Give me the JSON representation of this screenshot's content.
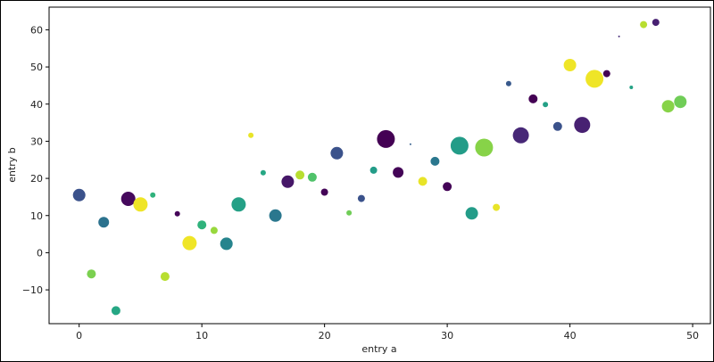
{
  "chart_data": {
    "type": "scatter",
    "title": "",
    "xlabel": "entry a",
    "ylabel": "entry b",
    "xlim": [
      -2.45,
      51.45
    ],
    "ylim": [
      -19.1,
      66.1
    ],
    "xticks": [
      0,
      10,
      20,
      30,
      40,
      50
    ],
    "yticks": [
      -10,
      0,
      10,
      20,
      30,
      40,
      50,
      60
    ],
    "grid": false,
    "colormap": "viridis",
    "color_encoding": "color value 0-1 on viridis colormap",
    "size_encoding": "marker radius",
    "points": [
      {
        "x": 0,
        "y": 15.5,
        "c": 0.25,
        "r": 7
      },
      {
        "x": 1,
        "y": -5.7,
        "c": 0.8,
        "r": 5
      },
      {
        "x": 2,
        "y": 8.2,
        "c": 0.38,
        "r": 6
      },
      {
        "x": 3,
        "y": -15.6,
        "c": 0.6,
        "r": 5
      },
      {
        "x": 4,
        "y": 14.5,
        "c": 0.03,
        "r": 8
      },
      {
        "x": 5,
        "y": 13.0,
        "c": 0.98,
        "r": 8
      },
      {
        "x": 6,
        "y": 15.5,
        "c": 0.65,
        "r": 3
      },
      {
        "x": 7,
        "y": -6.4,
        "c": 0.9,
        "r": 5
      },
      {
        "x": 8,
        "y": 10.5,
        "c": 0.02,
        "r": 3
      },
      {
        "x": 9,
        "y": 2.6,
        "c": 0.98,
        "r": 8
      },
      {
        "x": 10,
        "y": 7.5,
        "c": 0.65,
        "r": 5
      },
      {
        "x": 11,
        "y": 6.0,
        "c": 0.85,
        "r": 4
      },
      {
        "x": 12,
        "y": 2.4,
        "c": 0.45,
        "r": 7
      },
      {
        "x": 13,
        "y": 13.0,
        "c": 0.57,
        "r": 8
      },
      {
        "x": 14,
        "y": 31.6,
        "c": 0.97,
        "r": 3
      },
      {
        "x": 15,
        "y": 21.5,
        "c": 0.6,
        "r": 3
      },
      {
        "x": 16,
        "y": 10.0,
        "c": 0.4,
        "r": 7
      },
      {
        "x": 17,
        "y": 19.1,
        "c": 0.08,
        "r": 7
      },
      {
        "x": 18,
        "y": 20.9,
        "c": 0.9,
        "r": 5
      },
      {
        "x": 19,
        "y": 20.3,
        "c": 0.72,
        "r": 5
      },
      {
        "x": 20,
        "y": 16.3,
        "c": 0.01,
        "r": 4
      },
      {
        "x": 21,
        "y": 26.8,
        "c": 0.25,
        "r": 7
      },
      {
        "x": 22,
        "y": 10.7,
        "c": 0.78,
        "r": 3
      },
      {
        "x": 23,
        "y": 14.6,
        "c": 0.25,
        "r": 4
      },
      {
        "x": 24,
        "y": 22.2,
        "c": 0.55,
        "r": 4
      },
      {
        "x": 25,
        "y": 30.6,
        "c": 0.0,
        "r": 10
      },
      {
        "x": 26,
        "y": 21.6,
        "c": 0.01,
        "r": 6
      },
      {
        "x": 27,
        "y": 29.2,
        "c": 0.3,
        "r": 1
      },
      {
        "x": 28,
        "y": 19.2,
        "c": 0.97,
        "r": 5
      },
      {
        "x": 29,
        "y": 24.6,
        "c": 0.4,
        "r": 5
      },
      {
        "x": 30,
        "y": 17.8,
        "c": 0.01,
        "r": 5
      },
      {
        "x": 31,
        "y": 28.8,
        "c": 0.55,
        "r": 10
      },
      {
        "x": 32,
        "y": 10.6,
        "c": 0.55,
        "r": 7
      },
      {
        "x": 33,
        "y": 28.3,
        "c": 0.82,
        "r": 10
      },
      {
        "x": 34,
        "y": 12.2,
        "c": 0.97,
        "r": 4
      },
      {
        "x": 35,
        "y": 45.5,
        "c": 0.28,
        "r": 3
      },
      {
        "x": 36,
        "y": 31.6,
        "c": 0.14,
        "r": 9
      },
      {
        "x": 37,
        "y": 41.4,
        "c": 0.0,
        "r": 5
      },
      {
        "x": 38,
        "y": 39.9,
        "c": 0.57,
        "r": 3
      },
      {
        "x": 39,
        "y": 34.0,
        "c": 0.25,
        "r": 5
      },
      {
        "x": 40,
        "y": 50.5,
        "c": 0.98,
        "r": 7
      },
      {
        "x": 41,
        "y": 34.4,
        "c": 0.12,
        "r": 9
      },
      {
        "x": 42,
        "y": 46.8,
        "c": 0.98,
        "r": 10
      },
      {
        "x": 43,
        "y": 48.2,
        "c": 0.0,
        "r": 4
      },
      {
        "x": 44,
        "y": 58.2,
        "c": 0.15,
        "r": 1
      },
      {
        "x": 45,
        "y": 44.5,
        "c": 0.58,
        "r": 2
      },
      {
        "x": 46,
        "y": 61.4,
        "c": 0.9,
        "r": 4
      },
      {
        "x": 47,
        "y": 62.0,
        "c": 0.12,
        "r": 4
      },
      {
        "x": 48,
        "y": 39.4,
        "c": 0.82,
        "r": 7
      },
      {
        "x": 49,
        "y": 40.6,
        "c": 0.78,
        "r": 7
      }
    ]
  }
}
